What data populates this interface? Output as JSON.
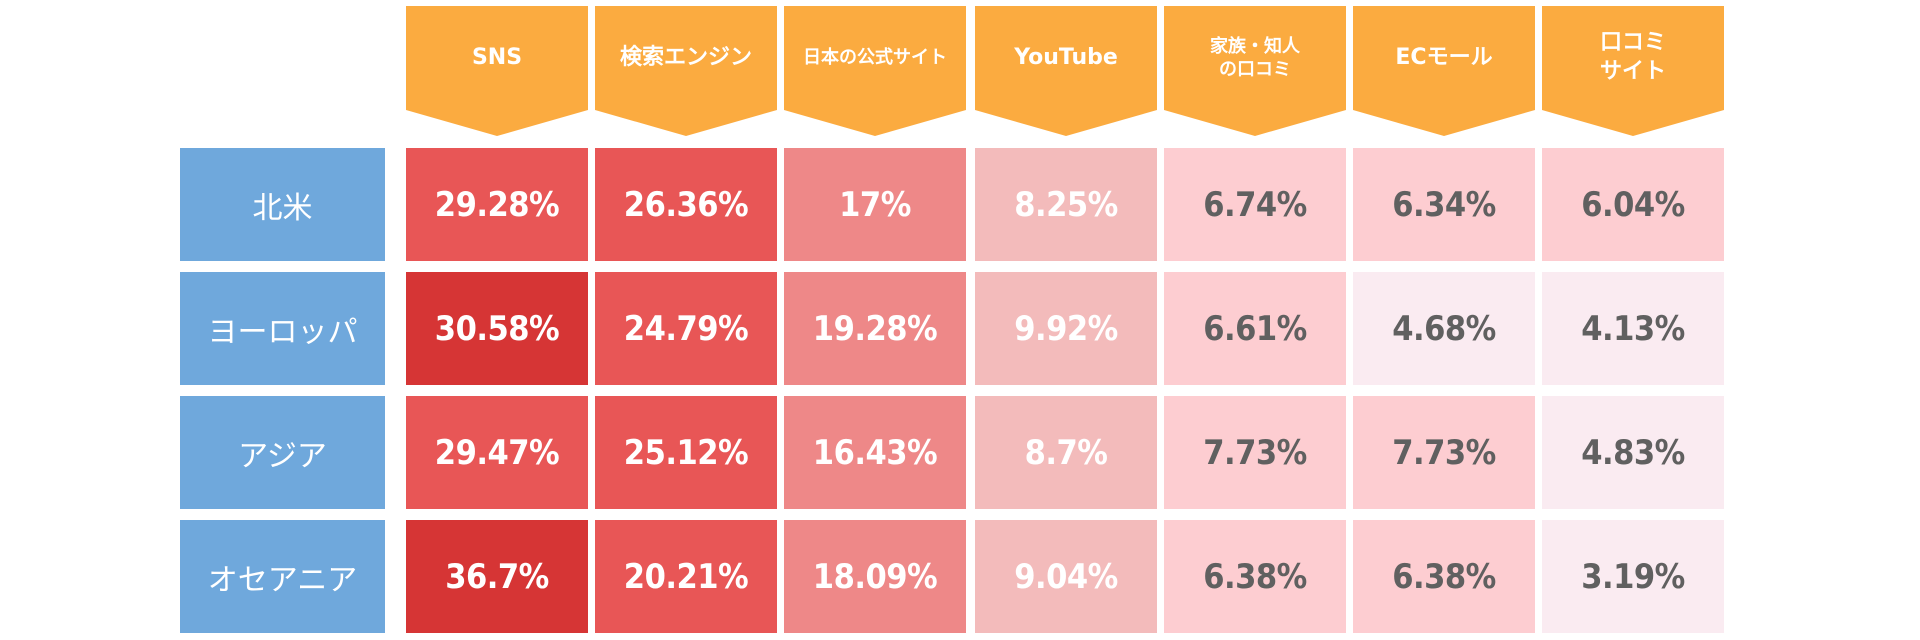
{
  "chart_data": {
    "type": "heatmap",
    "columns": [
      "SNS",
      "検索エンジン",
      "日本の公式サイト",
      "YouTube",
      "家族・知人\nの口コミ",
      "ECモール",
      "口コミ\nサイト"
    ],
    "rows": [
      "北米",
      "ヨーロッパ",
      "アジア",
      "オセアニア"
    ],
    "values": [
      [
        "29.28%",
        "26.36%",
        "17%",
        "8.25%",
        "6.74%",
        "6.34%",
        "6.04%"
      ],
      [
        "30.58%",
        "24.79%",
        "19.28%",
        "9.92%",
        "6.61%",
        "4.68%",
        "4.13%"
      ],
      [
        "29.47%",
        "25.12%",
        "16.43%",
        "8.7%",
        "7.73%",
        "7.73%",
        "4.83%"
      ],
      [
        "36.7%",
        "20.21%",
        "18.09%",
        "9.04%",
        "6.38%",
        "6.38%",
        "3.19%"
      ]
    ]
  },
  "colors": {
    "header_bg": "#FBAB40",
    "row_header_bg": "#6FA8DC",
    "scale": [
      "#D63535",
      "#E85656",
      "#EE8888",
      "#F3BBBB",
      "#FDCDD1",
      "#FAEBF1"
    ],
    "text_light": "#FFFFFF",
    "text_dark": "#606060"
  }
}
